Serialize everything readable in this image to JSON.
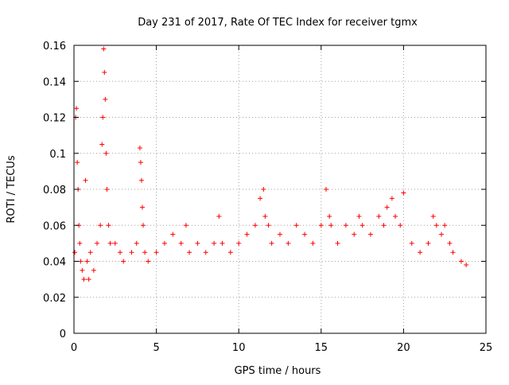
{
  "chart_data": {
    "type": "scatter",
    "title": "Day 231 of 2017, Rate Of TEC Index for receiver tgmx",
    "xlabel": "GPS time / hours",
    "ylabel": "ROTI / TECUs",
    "xlim": [
      0,
      25
    ],
    "ylim": [
      0,
      0.16
    ],
    "x_ticks": [
      "0",
      "5",
      "10",
      "15",
      "20",
      "25"
    ],
    "y_ticks": [
      "0",
      "0.02",
      "0.04",
      "0.06",
      "0.08",
      "0.1",
      "0.12",
      "0.14",
      "0.16"
    ],
    "grid": true,
    "marker": "+",
    "color": "#ff0000",
    "series": [
      {
        "x": [
          0.05,
          0.1,
          0.15,
          0.2,
          0.25,
          0.3,
          0.35,
          0.4,
          0.5,
          0.6,
          0.7,
          0.8,
          0.9,
          1.0,
          1.2,
          1.4,
          1.6,
          1.7,
          1.75,
          1.8,
          1.85,
          1.9,
          1.95,
          2.0,
          2.1,
          2.2,
          2.5,
          2.8,
          3.0,
          3.5,
          3.8,
          4.0,
          4.05,
          4.1,
          4.15,
          4.2,
          4.3,
          4.5,
          5.0,
          5.5,
          6.0,
          6.5,
          6.8,
          7.0,
          7.5,
          8.0,
          8.5,
          8.8,
          9.0,
          9.5,
          10.0,
          10.5,
          11.0,
          11.3,
          11.5,
          11.6,
          11.8,
          12.0,
          12.5,
          13.0,
          13.5,
          14.0,
          14.5,
          15.0,
          15.3,
          15.5,
          15.6,
          16.0,
          16.5,
          17.0,
          17.3,
          17.5,
          18.0,
          18.5,
          18.8,
          19.0,
          19.3,
          19.5,
          19.8,
          20.0,
          20.5,
          21.0,
          21.5,
          21.8,
          22.0,
          22.3,
          22.5,
          22.8,
          23.0,
          23.5,
          23.8
        ],
        "y": [
          0.045,
          0.12,
          0.125,
          0.095,
          0.08,
          0.06,
          0.05,
          0.04,
          0.035,
          0.03,
          0.085,
          0.04,
          0.03,
          0.045,
          0.035,
          0.05,
          0.06,
          0.105,
          0.12,
          0.158,
          0.145,
          0.13,
          0.1,
          0.08,
          0.06,
          0.05,
          0.05,
          0.045,
          0.04,
          0.045,
          0.05,
          0.103,
          0.095,
          0.085,
          0.07,
          0.06,
          0.045,
          0.04,
          0.045,
          0.05,
          0.055,
          0.05,
          0.06,
          0.045,
          0.05,
          0.045,
          0.05,
          0.065,
          0.05,
          0.045,
          0.05,
          0.055,
          0.06,
          0.075,
          0.08,
          0.065,
          0.06,
          0.05,
          0.055,
          0.05,
          0.06,
          0.055,
          0.05,
          0.06,
          0.08,
          0.065,
          0.06,
          0.05,
          0.06,
          0.055,
          0.065,
          0.06,
          0.055,
          0.065,
          0.06,
          0.07,
          0.075,
          0.065,
          0.06,
          0.078,
          0.05,
          0.045,
          0.05,
          0.065,
          0.06,
          0.055,
          0.06,
          0.05,
          0.045,
          0.04,
          0.038
        ]
      }
    ]
  }
}
